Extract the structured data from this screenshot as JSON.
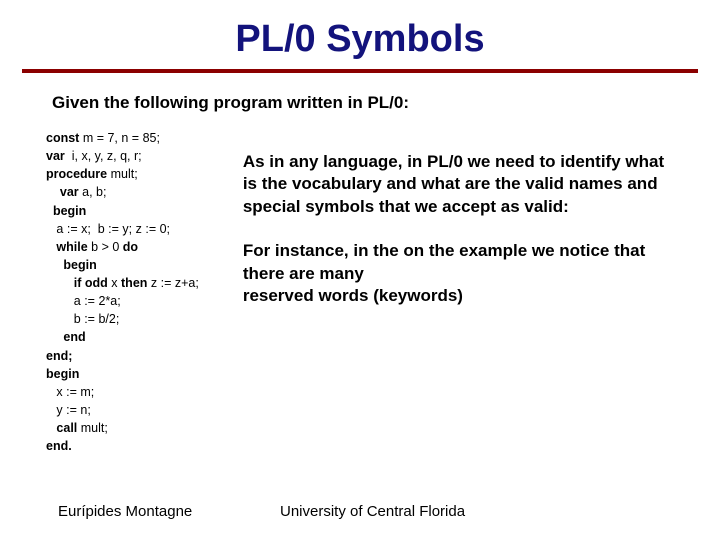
{
  "title": "PL/0 Symbols",
  "intro": "Given the following program written in PL/0:",
  "code": {
    "l1_kw": "const",
    "l1_rest": " m = 7, n = 85;",
    "l2_kw": "var",
    "l2_rest": "  i, x, y, z, q, r;",
    "l3_kw": "procedure",
    "l3_rest": " mult;",
    "l4_pre": "    ",
    "l4_kw": "var",
    "l4_rest": " a, b;",
    "l5_pre": "  ",
    "l5_kw": "begin",
    "l6": "   a := x;  b := y; z := 0;",
    "l7_pre": "   ",
    "l7_kw": "while",
    "l7_mid": " b > 0 ",
    "l7_kw2": "do",
    "l8_pre": "     ",
    "l8_kw": "begin",
    "l9_pre": "        ",
    "l9_kw": "if odd",
    "l9_mid": " x ",
    "l9_kw2": "then",
    "l9_rest": " z := z+a;",
    "l10": "        a := 2*a;",
    "l11": "        b := b/2;",
    "l12_pre": "     ",
    "l12_kw": "end",
    "l13_kw": "end;",
    "l14_kw": "begin",
    "l15": "   x := m;",
    "l16": "   y := n;",
    "l17_pre": "   ",
    "l17_kw": "call",
    "l17_rest": " mult;",
    "l18_kw": "end."
  },
  "para1": "As in any language, in PL/0  we need to identify what is the vocabulary and what are the valid names and special symbols that we accept as valid:",
  "para2": "For instance, in the on the example we notice that there are many",
  "para2b": "reserved words (keywords)",
  "footer_left": "Eurípides Montagne",
  "footer_center": "University of Central Florida",
  "colors": {
    "title": "#13137c",
    "rule": "#8b0000",
    "background": "#ffffff",
    "text": "#000000"
  }
}
